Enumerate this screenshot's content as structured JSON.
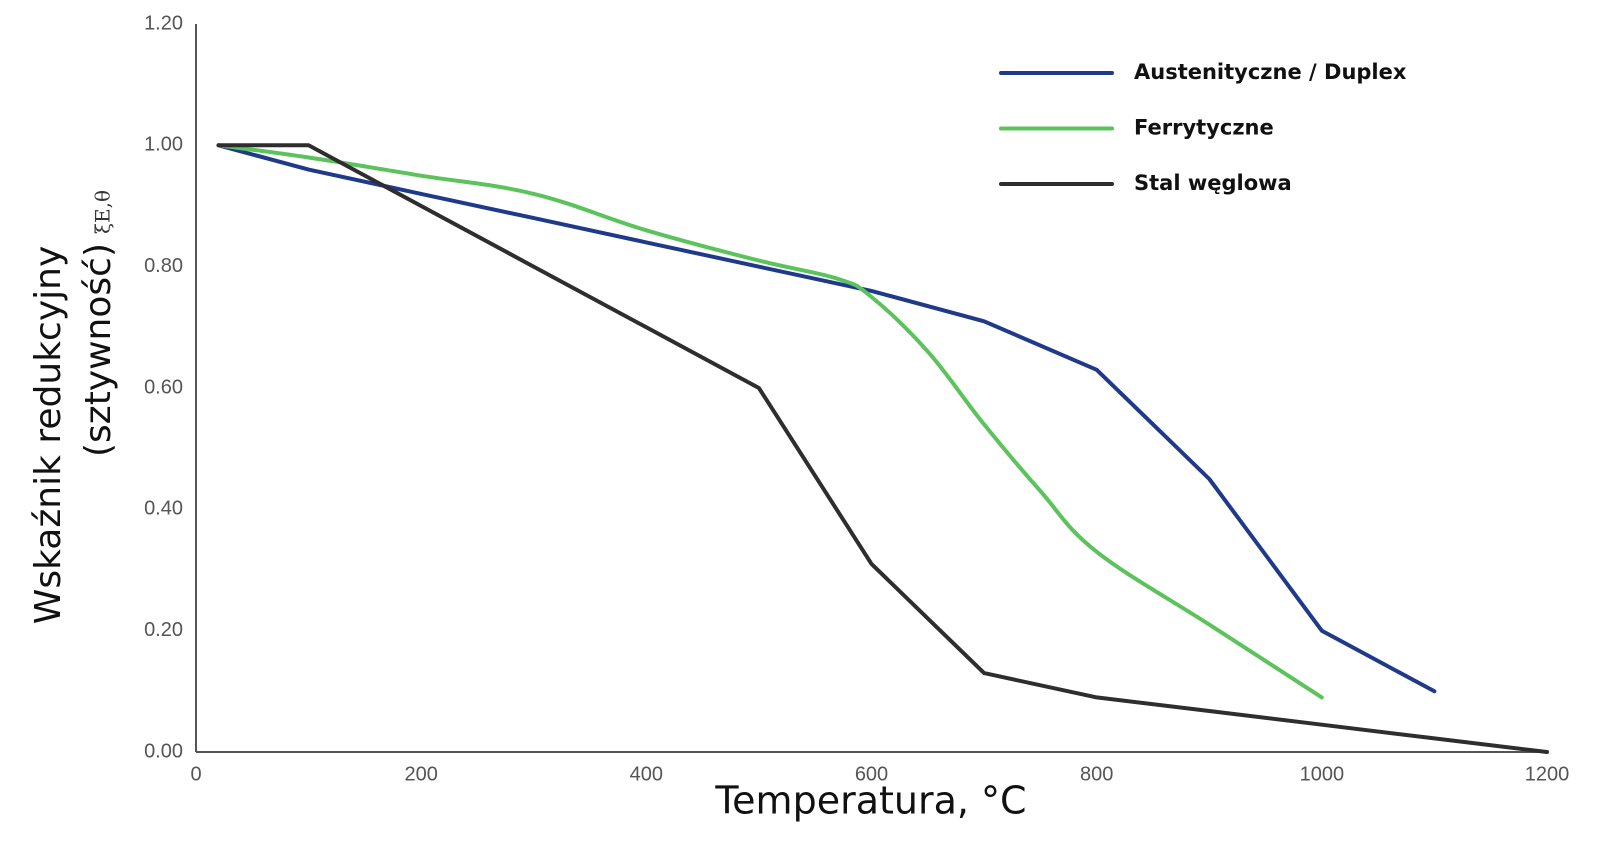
{
  "chart_data": {
    "type": "line",
    "xlabel": "Temperatura, °C",
    "ylabel_line1": "Wskaźnik redukcyjny",
    "ylabel_line2": "(sztywność)",
    "ylabel_symbol": "ξE,θ",
    "xlim": [
      0,
      1200
    ],
    "ylim": [
      0,
      1.2
    ],
    "x_ticks": [
      "0",
      "200",
      "400",
      "600",
      "800",
      "1000",
      "1200"
    ],
    "y_ticks": [
      "0.00",
      "0.20",
      "0.40",
      "0.60",
      "0.80",
      "1.00",
      "1.20"
    ],
    "grid": false,
    "legend_position": "top-right",
    "series": [
      {
        "name": "Austenityczne / Duplex",
        "color": "#1f3a8a",
        "points": [
          [
            20,
            1.0
          ],
          [
            100,
            0.96
          ],
          [
            200,
            0.92
          ],
          [
            300,
            0.88
          ],
          [
            400,
            0.84
          ],
          [
            500,
            0.8
          ],
          [
            600,
            0.76
          ],
          [
            700,
            0.71
          ],
          [
            800,
            0.63
          ],
          [
            900,
            0.45
          ],
          [
            1000,
            0.2
          ],
          [
            1100,
            0.1
          ]
        ]
      },
      {
        "name": "Ferrytyczne",
        "color": "#5cc35c",
        "points": [
          [
            20,
            1.0
          ],
          [
            100,
            0.98
          ],
          [
            200,
            0.95
          ],
          [
            300,
            0.92
          ],
          [
            400,
            0.86
          ],
          [
            500,
            0.81
          ],
          [
            570,
            0.78
          ],
          [
            600,
            0.75
          ],
          [
            650,
            0.66
          ],
          [
            700,
            0.54
          ],
          [
            750,
            0.43
          ],
          [
            800,
            0.33
          ],
          [
            900,
            0.21
          ],
          [
            1000,
            0.09
          ]
        ]
      },
      {
        "name": "Stal węglowa",
        "color": "#2e2e2e",
        "points": [
          [
            20,
            1.0
          ],
          [
            100,
            1.0
          ],
          [
            200,
            0.9
          ],
          [
            300,
            0.8
          ],
          [
            400,
            0.7
          ],
          [
            500,
            0.6
          ],
          [
            600,
            0.31
          ],
          [
            700,
            0.13
          ],
          [
            800,
            0.09
          ],
          [
            900,
            0.0675
          ],
          [
            1000,
            0.045
          ],
          [
            1100,
            0.0225
          ],
          [
            1200,
            0.0
          ]
        ]
      }
    ]
  }
}
